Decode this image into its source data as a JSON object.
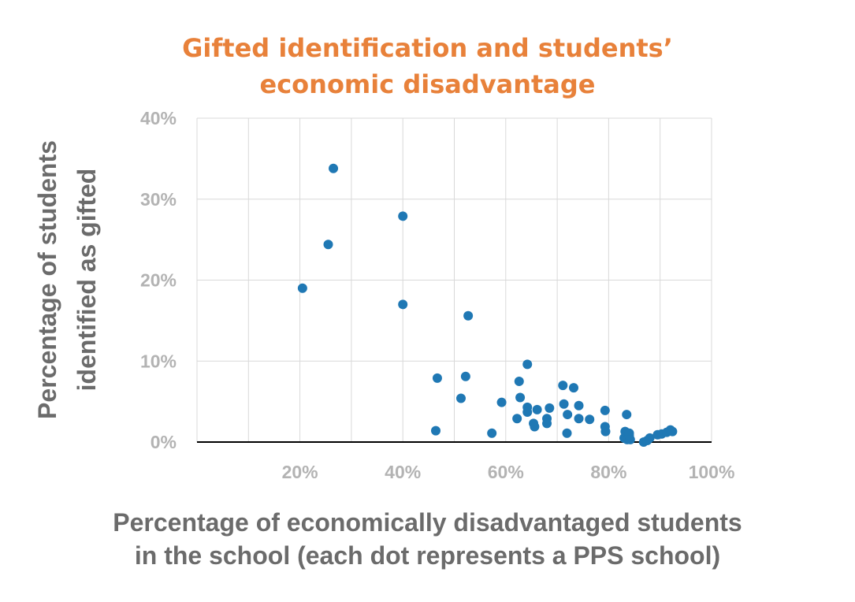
{
  "chart_data": {
    "type": "scatter",
    "title_lines": [
      "Gifted identification and students’",
      "economic disadvantage"
    ],
    "ylabel_lines": [
      "Percentage of students",
      "identified as gifted"
    ],
    "xlabel_lines": [
      "Percentage of economically disadvantaged students",
      "in the school (each dot represents a PPS school)"
    ],
    "xlim": [
      0,
      100
    ],
    "ylim": [
      0,
      40
    ],
    "x_ticks": [
      {
        "value": 20,
        "label": "20%"
      },
      {
        "value": 40,
        "label": "40%"
      },
      {
        "value": 60,
        "label": "60%"
      },
      {
        "value": 80,
        "label": "80%"
      },
      {
        "value": 100,
        "label": "100%"
      }
    ],
    "y_ticks": [
      {
        "value": 0,
        "label": "0%"
      },
      {
        "value": 10,
        "label": "10%"
      },
      {
        "value": 20,
        "label": "20%"
      },
      {
        "value": 30,
        "label": "30%"
      },
      {
        "value": 40,
        "label": "40%"
      }
    ],
    "grid": true,
    "marker_color": "#1f78b4",
    "points": [
      [
        20.5,
        19.0
      ],
      [
        25.5,
        24.4
      ],
      [
        26.5,
        33.8
      ],
      [
        40.0,
        27.9
      ],
      [
        40.0,
        17.0
      ],
      [
        46.4,
        1.4
      ],
      [
        46.7,
        7.9
      ],
      [
        51.3,
        5.4
      ],
      [
        52.2,
        8.1
      ],
      [
        52.7,
        15.6
      ],
      [
        57.3,
        1.1
      ],
      [
        59.2,
        4.9
      ],
      [
        62.2,
        2.9
      ],
      [
        62.6,
        7.5
      ],
      [
        62.8,
        5.5
      ],
      [
        64.2,
        9.6
      ],
      [
        64.2,
        4.3
      ],
      [
        64.2,
        3.7
      ],
      [
        65.4,
        2.3
      ],
      [
        65.6,
        1.9
      ],
      [
        66.1,
        4.0
      ],
      [
        68.0,
        2.9
      ],
      [
        68.0,
        2.3
      ],
      [
        68.5,
        4.2
      ],
      [
        71.1,
        7.0
      ],
      [
        71.3,
        4.7
      ],
      [
        71.9,
        1.1
      ],
      [
        72.0,
        3.4
      ],
      [
        73.2,
        6.7
      ],
      [
        74.2,
        4.5
      ],
      [
        74.2,
        2.9
      ],
      [
        76.3,
        2.8
      ],
      [
        79.3,
        3.9
      ],
      [
        79.3,
        1.9
      ],
      [
        79.4,
        1.3
      ],
      [
        83.0,
        0.5
      ],
      [
        83.2,
        1.3
      ],
      [
        83.5,
        3.4
      ],
      [
        83.6,
        0.3
      ],
      [
        84.0,
        0.8
      ],
      [
        84.0,
        1.1
      ],
      [
        84.2,
        0.3
      ],
      [
        86.8,
        0.0
      ],
      [
        87.5,
        0.2
      ],
      [
        88.0,
        0.5
      ],
      [
        89.5,
        0.9
      ],
      [
        90.3,
        1.0
      ],
      [
        91.3,
        1.2
      ],
      [
        92.0,
        1.5
      ],
      [
        92.4,
        1.3
      ]
    ]
  }
}
